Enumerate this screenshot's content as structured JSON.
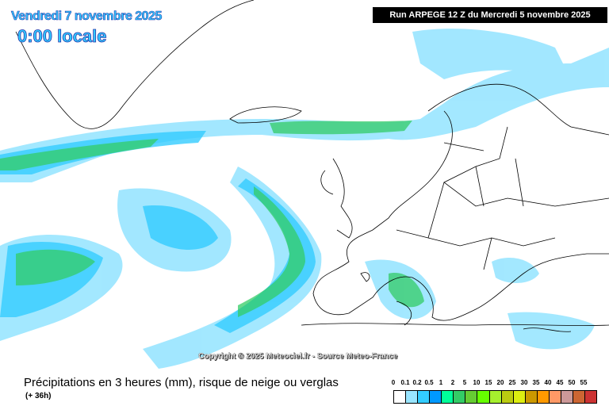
{
  "header": {
    "date": "Vendredi 7 novembre 2025",
    "time": "0:00 locale",
    "run": "Run ARPEGE 12 Z du Mercredi 5 novembre 2025"
  },
  "copyright": "Copyright © 2025 Meteociel.fr - Source Meteo-France",
  "footer": {
    "title": "Précipitations en 3 heures (mm), risque de neige ou verglas",
    "subtitle": "(+ 36h)"
  },
  "legend": {
    "labels": [
      "0",
      "0.1",
      "0.2",
      "0.5",
      "1",
      "2",
      "5",
      "10",
      "15",
      "20",
      "25",
      "30",
      "35",
      "40",
      "45",
      "50",
      "55"
    ],
    "colors": [
      "#ffffff",
      "#99e5ff",
      "#33ccff",
      "#0099ff",
      "#00ff99",
      "#33cc66",
      "#66cc33",
      "#66ff00",
      "#a6f02e",
      "#bbcc11",
      "#ddee11",
      "#cc9900",
      "#ff9900",
      "#ff9966",
      "#cc9999",
      "#cc6633",
      "#cc3333"
    ]
  }
}
